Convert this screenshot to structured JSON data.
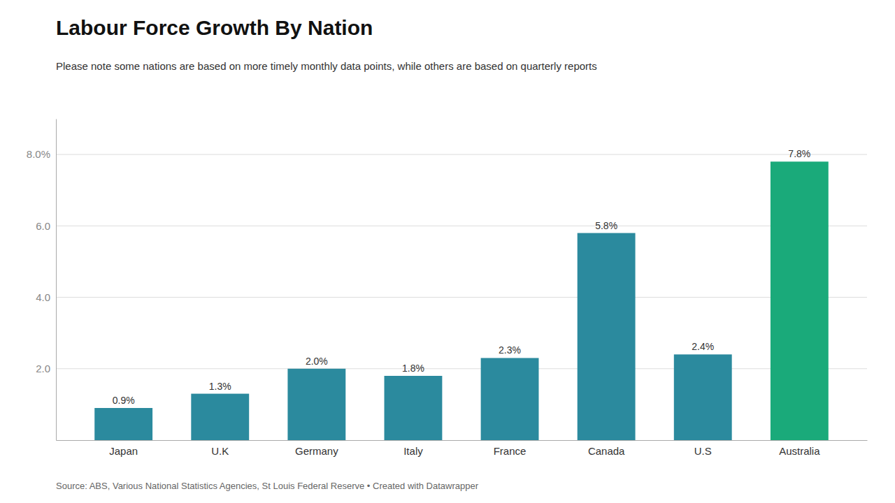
{
  "chart_data": {
    "type": "bar",
    "title": "Labour Force Growth By Nation",
    "subtitle": "Please note some nations are based on more timely monthly data points, while others are based on quarterly reports",
    "source": "Source: ABS, Various National Statistics Agencies, St Louis Federal Reserve • Created with Datawrapper",
    "categories": [
      "Japan",
      "U.K",
      "Germany",
      "Italy",
      "France",
      "Canada",
      "U.S",
      "Australia"
    ],
    "values": [
      0.9,
      1.3,
      2.0,
      1.8,
      2.3,
      5.8,
      2.4,
      7.8
    ],
    "value_labels": [
      "0.9%",
      "1.3%",
      "2.0%",
      "1.8%",
      "2.3%",
      "5.8%",
      "2.4%",
      "7.8%"
    ],
    "data_labels": true,
    "colors": [
      "#2b8a9e",
      "#2b8a9e",
      "#2b8a9e",
      "#2b8a9e",
      "#2b8a9e",
      "#2b8a9e",
      "#2b8a9e",
      "#1aaa7a"
    ],
    "ylim": [
      0,
      9.0
    ],
    "yticks": [
      {
        "value": 2.0,
        "label": "2.0"
      },
      {
        "value": 4.0,
        "label": "4.0"
      },
      {
        "value": 6.0,
        "label": "6.0"
      },
      {
        "value": 8.0,
        "label": "8.0%"
      }
    ],
    "grid": true
  }
}
